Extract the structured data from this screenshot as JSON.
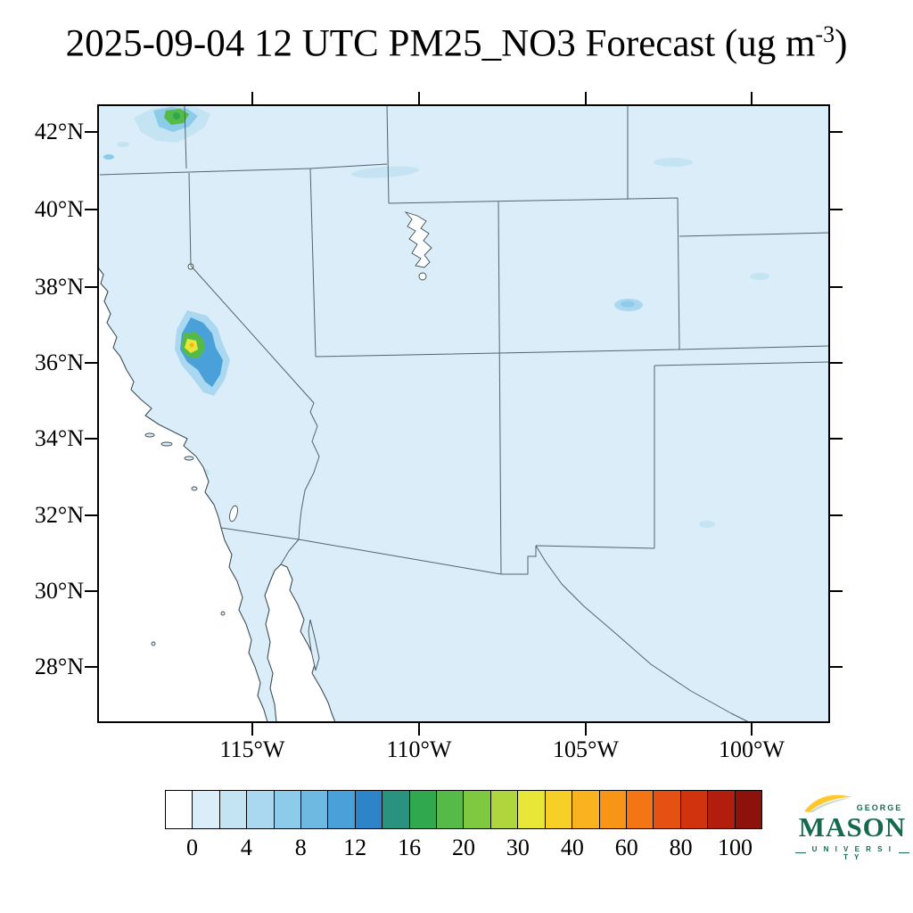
{
  "title": {
    "prefix": "2025-09-04 12 UTC PM25_NO3 Forecast (ug m",
    "superscript": "-3",
    "suffix": ")"
  },
  "map": {
    "lat_tick_labels": [
      "42°N",
      "40°N",
      "38°N",
      "36°N",
      "34°N",
      "32°N",
      "30°N",
      "28°N"
    ],
    "lon_tick_labels": [
      "115°W",
      "110°W",
      "105°W",
      "100°W"
    ]
  },
  "colorbar": {
    "tick_labels": [
      "0",
      "4",
      "8",
      "12",
      "16",
      "20",
      "30",
      "40",
      "60",
      "80",
      "100"
    ],
    "colors": [
      "#ffffff",
      "#daedf8",
      "#c4e4f4",
      "#a9d8f0",
      "#8ccbe9",
      "#6db9e2",
      "#4aa1d9",
      "#2d84c8",
      "#2a9380",
      "#2fa84e",
      "#55ba47",
      "#7fc941",
      "#afd63d",
      "#e8e737",
      "#f6cf27",
      "#f8b31f",
      "#f89517",
      "#f37513",
      "#e55112",
      "#d1330f",
      "#b21d0e",
      "#8e120c"
    ]
  },
  "logo": {
    "george": "GEORGE",
    "mason": "MASON",
    "university": "U N I V E R S I T Y"
  },
  "colors": {
    "gmu_green": "#156a4d",
    "gmu_gold": "#ffc72c",
    "land_background": "#daedf8",
    "water": "#ffffff",
    "border_line": "#54646c"
  },
  "chart_data": {
    "type": "heatmap",
    "variable": "PM25_NO3",
    "units": "ug m-3",
    "forecast_datetime": "2025-09-04 12 UTC",
    "title": "2025-09-04 12 UTC PM25_NO3 Forecast (ug m-3)",
    "region": "southwestern United States and northern Mexico",
    "lat_ticks": [
      "42°N",
      "40°N",
      "38°N",
      "36°N",
      "34°N",
      "32°N",
      "30°N",
      "28°N"
    ],
    "lon_ticks": [
      "115°W",
      "110°W",
      "105°W",
      "100°W"
    ],
    "colorbar_levels": [
      0,
      4,
      8,
      12,
      16,
      20,
      30,
      40,
      60,
      80,
      100
    ],
    "colorbar_orientation": "horizontal-bottom",
    "field_summary": [
      {
        "region": "most land areas of domain",
        "value_range": "0-2 (pale blue background)"
      },
      {
        "region": "Pacific Ocean, Gulf of California, lakes",
        "value_range": "masked white"
      },
      {
        "region": "central California ~36.4N",
        "value_range": "peak ~30-40: yellow/orange core, green ring, blue halo"
      },
      {
        "region": "northwest corner near California-Oregon border ~42N",
        "value_range": "8-20 patch with green core"
      },
      {
        "region": "southeastern Colorado ~37.5N",
        "value_range": "2-8 small light-blue patch"
      },
      {
        "region": "scattered specks (NV-ID border, Wyoming, west Texas, Baja)",
        "value_range": "2-4"
      }
    ]
  }
}
